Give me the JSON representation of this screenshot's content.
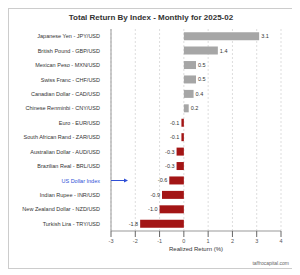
{
  "chart_data": {
    "type": "bar",
    "orientation": "horizontal",
    "title": "Total Return By Index - Monthly for 2025-02",
    "x_label": "Realized Return (%)",
    "categories": [
      "Japanese Yen - JPY/USD",
      "British Pound - GBP/USD",
      "Mexican Peso - MXN/USD",
      "Swiss Franc - CHF/USD",
      "Canadian Dollar - CAD/USD",
      "Chinese Renminbi - CNY/USD",
      "Euro - EUR/USD",
      "South African Rand - ZAR/USD",
      "Australian Dollar - AUD/USD",
      "Brazilian Real - BRL/USD",
      "US Dollar Index",
      "Indian Rupee - INR/USD",
      "New Zealand Dollar - NZD/USD",
      "Turkish Lira - TRY/USD"
    ],
    "values": [
      3.1,
      1.4,
      0.5,
      0.5,
      0.4,
      0.2,
      -0.1,
      -0.1,
      -0.3,
      -0.3,
      -0.6,
      -0.9,
      -1.0,
      -1.8
    ],
    "value_labels": [
      "3.1",
      "1.4",
      "0.5",
      "0.5",
      "0.4",
      "0.2",
      "-0.1",
      "-0.1",
      "-0.3",
      "-0.3",
      "-0.6",
      "-0.9",
      "-1.0",
      "-1.8"
    ],
    "colors": [
      "#a6a6a6",
      "#a6a6a6",
      "#a6a6a6",
      "#a6a6a6",
      "#a6a6a6",
      "#a6a6a6",
      "#a31515",
      "#a31515",
      "#a31515",
      "#a31515",
      "#a31515",
      "#a31515",
      "#a31515",
      "#a31515"
    ],
    "data_labels": true,
    "xlim": [
      -3,
      4
    ],
    "xticks": [
      -3,
      -2,
      -1,
      0,
      1,
      2,
      3,
      4
    ],
    "grid": true,
    "annotations": [
      "taffrocapital.com"
    ]
  }
}
